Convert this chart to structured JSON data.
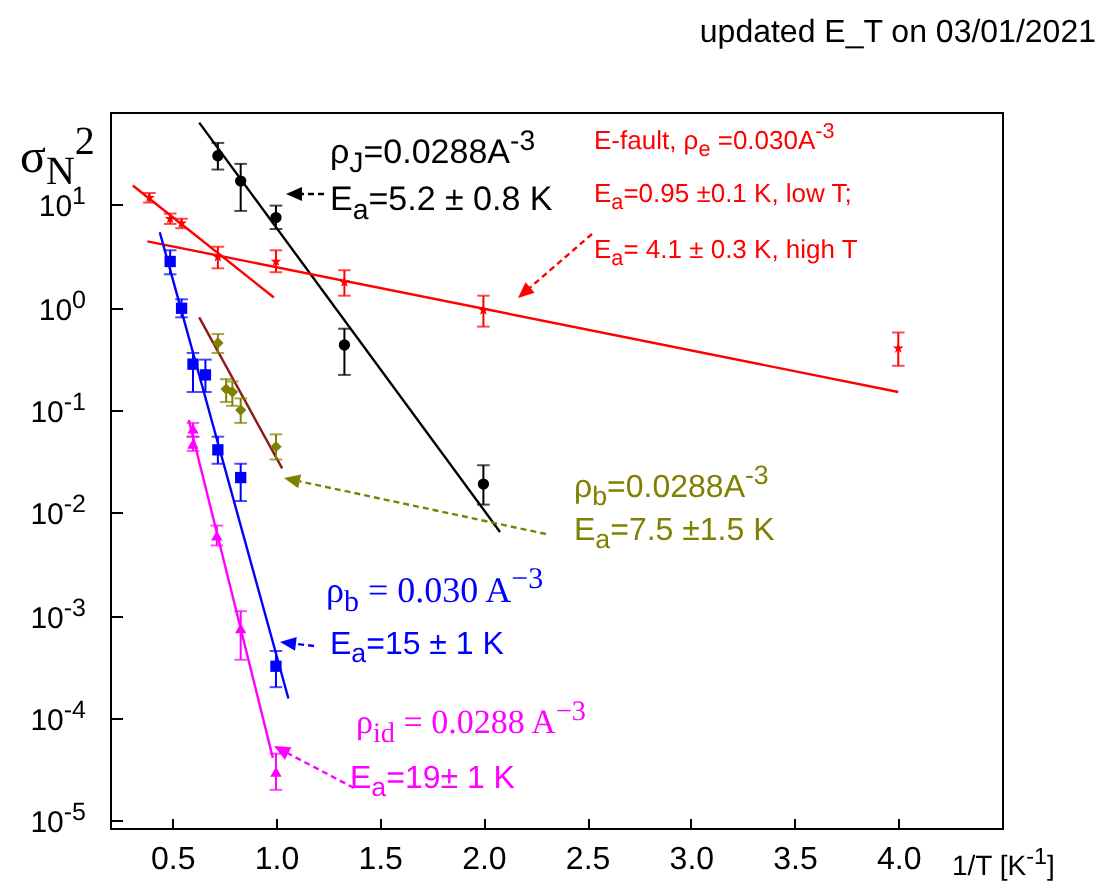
{
  "chart_data": {
    "type": "scatter",
    "log": "y",
    "xlabel": "1/T [K$^{-1}$]",
    "ylabel": "σ$_{N}$$^{2}$",
    "xlim": [
      0.2,
      4.5
    ],
    "ylim": [
      8.5e-06,
      80
    ],
    "xticks": [
      0.5,
      {
        "value": 1,
        "label": "1.0"
      },
      1.5,
      {
        "value": 2,
        "label": "2.0"
      },
      2.5,
      {
        "value": 3,
        "label": "3.0"
      },
      3.5,
      {
        "value": 4,
        "label": "4.0"
      }
    ],
    "yticks": [
      {
        "value": 1e-05,
        "label": "10$^{-5}$"
      },
      {
        "value": 0.0001,
        "label": "10$^{-4}$"
      },
      {
        "value": 0.001,
        "label": "10$^{-3}$"
      },
      {
        "value": 0.01,
        "label": "10$^{-2}$"
      },
      {
        "value": 0.1,
        "label": "10$^{-1}$"
      },
      {
        "value": 1,
        "label": "10$^{0}$"
      },
      {
        "value": 10,
        "label": "10$^{1}$"
      }
    ],
    "annotations": [
      "updated E_T on 03/01/2021",
      "ρ$_{J}$=0.0288A$^{-3}$",
      "E$_{a}$=5.2 ± 0.8 K",
      "E-fault, ρ$_{e}$ =0.030A$^{-3}$",
      "E$_{a}$=0.95 ±0.1 K, low T;",
      "E$_{a}$= 4.1 ± 0.3 K, high T",
      "ρ$_{b}$=0.0288A$^{-3}$",
      "E$_{a}$=7.5 ±1.5 K",
      "ρ$_{b}$ = 0.030 A$^{−3}$",
      "E$_{a}$=15 ± 1 K",
      "ρ$_{id}$ = 0.0288 A$^{−3}$",
      "E$_{a}$=19± 1 K"
    ],
    "series": [
      {
        "type": "scatter",
        "marker": "circle",
        "color": "#000000",
        "x": [
          0.72,
          0.83,
          1.0,
          1.33,
          2.0
        ],
        "values": [
          30,
          17,
          7.5,
          0.43,
          0.019
        ],
        "errors": [
          [
            22,
            40
          ],
          [
            8.7,
            25
          ],
          [
            5.8,
            9.8
          ],
          [
            0.22,
            0.62
          ],
          [
            0.012,
            0.029
          ]
        ]
      },
      {
        "type": "scatter",
        "marker": "star",
        "color": "#ff0000",
        "x": [
          0.39,
          0.49,
          0.545,
          0.72,
          1.0,
          1.33,
          2.0,
          4.0
        ],
        "values": [
          11.7,
          7.3,
          6.6,
          3.1,
          2.8,
          1.76,
          0.94,
          0.4
        ],
        "errors": [
          [
            10.5,
            13
          ],
          [
            6.5,
            8.2
          ],
          [
            5.9,
            7.3
          ],
          [
            2.4,
            3.9
          ],
          [
            2.2,
            3.6
          ],
          [
            1.3,
            2.3
          ],
          [
            0.65,
            1.3
          ],
          [
            0.27,
            0.57
          ]
        ]
      },
      {
        "type": "scatter",
        "marker": "diamond",
        "color": "#808000",
        "x": [
          0.72,
          0.76,
          0.79,
          0.83,
          1.0
        ],
        "values": [
          0.45,
          0.16,
          0.15,
          0.1,
          0.044
        ],
        "errors": [
          [
            0.36,
            0.55
          ],
          [
            0.12,
            0.2
          ],
          [
            0.11,
            0.19
          ],
          [
            0.075,
            0.13
          ],
          [
            0.033,
            0.058
          ]
        ]
      },
      {
        "type": "scatter",
        "marker": "square",
        "color": "#0000ff",
        "x": [
          0.49,
          0.545,
          0.6,
          0.66,
          0.72,
          0.83,
          1.0
        ],
        "values": [
          2.8,
          0.98,
          0.28,
          0.22,
          0.041,
          0.022,
          0.00032
        ],
        "errors": [
          [
            2.1,
            3.6
          ],
          [
            0.8,
            1.2
          ],
          [
            0.15,
            0.36
          ],
          [
            0.15,
            0.31
          ],
          [
            0.03,
            0.055
          ],
          [
            0.013,
            0.03
          ],
          [
            0.0002,
            0.00045
          ]
        ]
      },
      {
        "type": "scatter",
        "marker": "triangle",
        "color": "#ff00ff",
        "x": [
          0.6,
          0.6,
          0.715,
          0.83,
          1.0
        ],
        "values": [
          0.066,
          0.047,
          0.006,
          0.00075,
          3e-05
        ],
        "errors": [
          [
            0.055,
            0.075
          ],
          [
            0.04,
            0.055
          ],
          [
            0.0048,
            0.0075
          ],
          [
            0.00037,
            0.0011
          ],
          [
            2e-05,
            4.5e-05
          ]
        ]
      },
      {
        "type": "line",
        "color": "#000000",
        "x": [
          0.63,
          2.08
        ],
        "values": [
          63,
          0.0065
        ]
      },
      {
        "type": "line",
        "color": "#ff0000",
        "x": [
          0.31,
          0.99
        ],
        "values": [
          15.4,
          1.25
        ]
      },
      {
        "type": "line",
        "color": "#ff0000",
        "x": [
          0.38,
          4.0
        ],
        "values": [
          4.4,
          0.15
        ]
      },
      {
        "type": "line",
        "color": "#8b1a1a",
        "x": [
          0.63,
          1.03
        ],
        "values": [
          0.8,
          0.027
        ]
      },
      {
        "type": "line",
        "color": "#0000ff",
        "x": [
          0.44,
          1.06
        ],
        "values": [
          5.4,
          0.000155
        ]
      },
      {
        "type": "line",
        "color": "#ff00ff",
        "x": [
          0.58,
          0.985
        ],
        "values": [
          0.08,
          4.1e-05
        ]
      }
    ]
  }
}
